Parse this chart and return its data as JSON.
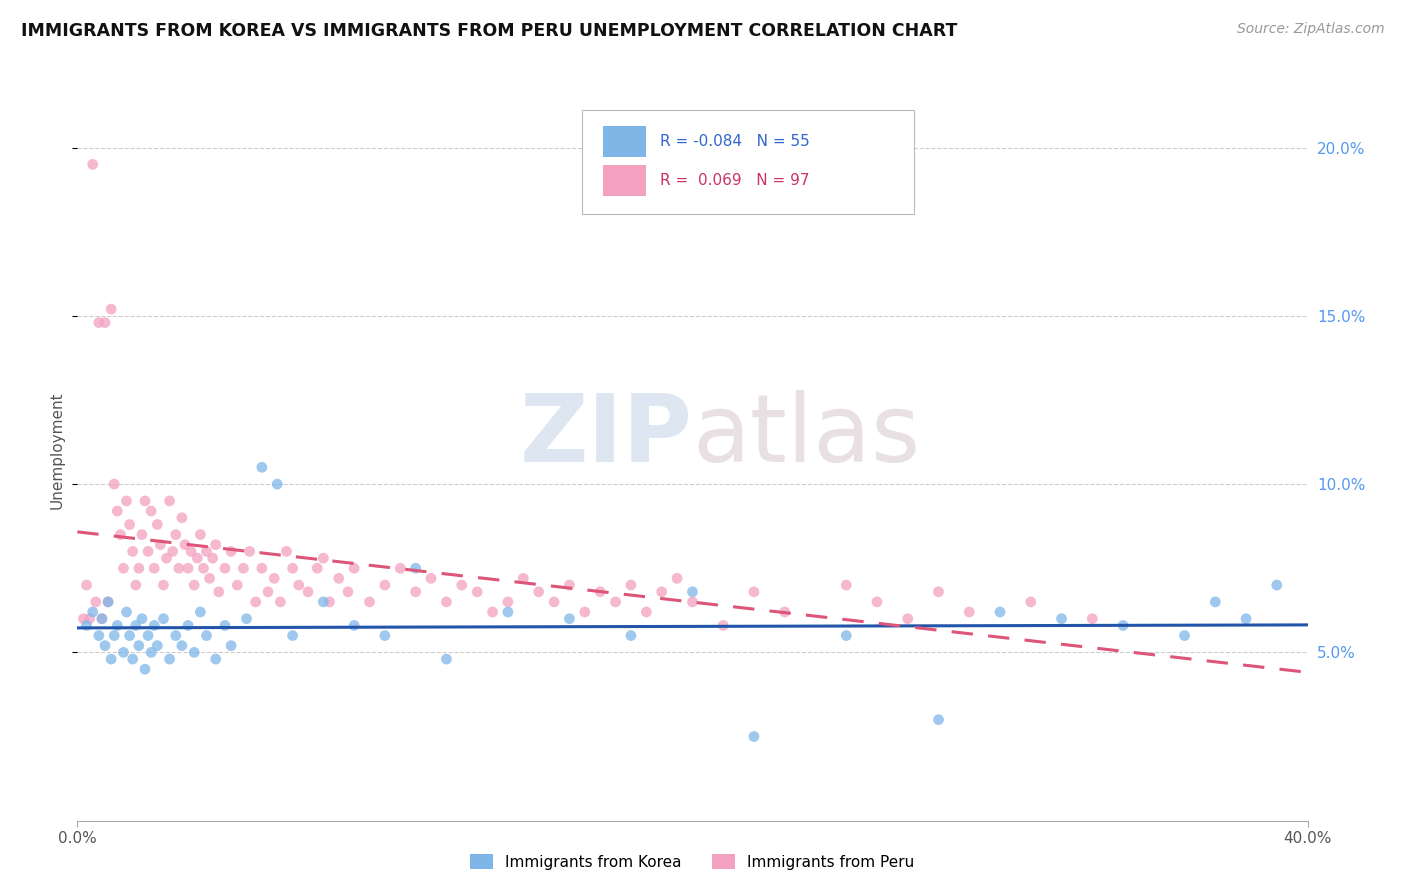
{
  "title": "IMMIGRANTS FROM KOREA VS IMMIGRANTS FROM PERU UNEMPLOYMENT CORRELATION CHART",
  "source": "Source: ZipAtlas.com",
  "ylabel": "Unemployment",
  "ylabel_right_ticks": [
    "20.0%",
    "15.0%",
    "10.0%",
    "5.0%"
  ],
  "ylabel_right_vals": [
    0.2,
    0.15,
    0.1,
    0.05
  ],
  "r_korea": -0.084,
  "n_korea": 55,
  "r_peru": 0.069,
  "n_peru": 97,
  "color_korea": "#7EB6E8",
  "color_peru": "#F4A0C0",
  "color_korea_line": "#2255AA",
  "color_peru_line": "#DD5577",
  "watermark_zip": "ZIP",
  "watermark_atlas": "atlas",
  "legend_label_korea": "Immigrants from Korea",
  "legend_label_peru": "Immigrants from Peru",
  "xlim": [
    0.0,
    0.4
  ],
  "ylim": [
    0.0,
    0.22
  ],
  "korea_points_x": [
    0.003,
    0.005,
    0.007,
    0.008,
    0.009,
    0.01,
    0.011,
    0.012,
    0.013,
    0.015,
    0.016,
    0.017,
    0.018,
    0.019,
    0.02,
    0.021,
    0.022,
    0.023,
    0.024,
    0.025,
    0.026,
    0.028,
    0.03,
    0.032,
    0.034,
    0.036,
    0.038,
    0.04,
    0.042,
    0.045,
    0.048,
    0.05,
    0.055,
    0.06,
    0.065,
    0.07,
    0.08,
    0.09,
    0.1,
    0.11,
    0.12,
    0.14,
    0.16,
    0.18,
    0.2,
    0.22,
    0.25,
    0.28,
    0.3,
    0.32,
    0.34,
    0.36,
    0.37,
    0.38,
    0.39
  ],
  "korea_points_y": [
    0.058,
    0.062,
    0.055,
    0.06,
    0.052,
    0.065,
    0.048,
    0.055,
    0.058,
    0.05,
    0.062,
    0.055,
    0.048,
    0.058,
    0.052,
    0.06,
    0.045,
    0.055,
    0.05,
    0.058,
    0.052,
    0.06,
    0.048,
    0.055,
    0.052,
    0.058,
    0.05,
    0.062,
    0.055,
    0.048,
    0.058,
    0.052,
    0.06,
    0.105,
    0.1,
    0.055,
    0.065,
    0.058,
    0.055,
    0.075,
    0.048,
    0.062,
    0.06,
    0.055,
    0.068,
    0.025,
    0.055,
    0.03,
    0.062,
    0.06,
    0.058,
    0.055,
    0.065,
    0.06,
    0.07
  ],
  "peru_points_x": [
    0.002,
    0.003,
    0.004,
    0.005,
    0.006,
    0.007,
    0.008,
    0.009,
    0.01,
    0.011,
    0.012,
    0.013,
    0.014,
    0.015,
    0.016,
    0.017,
    0.018,
    0.019,
    0.02,
    0.021,
    0.022,
    0.023,
    0.024,
    0.025,
    0.026,
    0.027,
    0.028,
    0.029,
    0.03,
    0.031,
    0.032,
    0.033,
    0.034,
    0.035,
    0.036,
    0.037,
    0.038,
    0.039,
    0.04,
    0.041,
    0.042,
    0.043,
    0.044,
    0.045,
    0.046,
    0.048,
    0.05,
    0.052,
    0.054,
    0.056,
    0.058,
    0.06,
    0.062,
    0.064,
    0.066,
    0.068,
    0.07,
    0.072,
    0.075,
    0.078,
    0.08,
    0.082,
    0.085,
    0.088,
    0.09,
    0.095,
    0.1,
    0.105,
    0.11,
    0.115,
    0.12,
    0.125,
    0.13,
    0.135,
    0.14,
    0.145,
    0.15,
    0.155,
    0.16,
    0.165,
    0.17,
    0.175,
    0.18,
    0.185,
    0.19,
    0.195,
    0.2,
    0.21,
    0.22,
    0.23,
    0.25,
    0.26,
    0.27,
    0.28,
    0.29,
    0.31,
    0.33
  ],
  "peru_points_y": [
    0.06,
    0.07,
    0.06,
    0.195,
    0.065,
    0.148,
    0.06,
    0.148,
    0.065,
    0.152,
    0.1,
    0.092,
    0.085,
    0.075,
    0.095,
    0.088,
    0.08,
    0.07,
    0.075,
    0.085,
    0.095,
    0.08,
    0.092,
    0.075,
    0.088,
    0.082,
    0.07,
    0.078,
    0.095,
    0.08,
    0.085,
    0.075,
    0.09,
    0.082,
    0.075,
    0.08,
    0.07,
    0.078,
    0.085,
    0.075,
    0.08,
    0.072,
    0.078,
    0.082,
    0.068,
    0.075,
    0.08,
    0.07,
    0.075,
    0.08,
    0.065,
    0.075,
    0.068,
    0.072,
    0.065,
    0.08,
    0.075,
    0.07,
    0.068,
    0.075,
    0.078,
    0.065,
    0.072,
    0.068,
    0.075,
    0.065,
    0.07,
    0.075,
    0.068,
    0.072,
    0.065,
    0.07,
    0.068,
    0.062,
    0.065,
    0.072,
    0.068,
    0.065,
    0.07,
    0.062,
    0.068,
    0.065,
    0.07,
    0.062,
    0.068,
    0.072,
    0.065,
    0.058,
    0.068,
    0.062,
    0.07,
    0.065,
    0.06,
    0.068,
    0.062,
    0.065,
    0.06
  ]
}
